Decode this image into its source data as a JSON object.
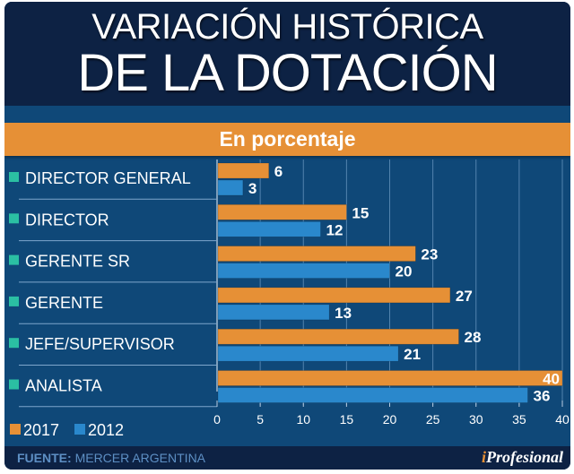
{
  "title_line1": "VARIACIÓN HISTÓRICA",
  "title_line2": "DE LA DOTACIÓN",
  "subtitle": "En porcentaje",
  "footer": {
    "source_label": "FUENTE:",
    "source_value": "MERCER ARGENTINA",
    "brand_prefix": "i",
    "brand_rest": "Profesional"
  },
  "colors": {
    "series_2017": "#e69036",
    "series_2012": "#2a88cc",
    "category_marker": "#2bbfa3"
  },
  "chart_data": {
    "type": "bar",
    "orientation": "horizontal",
    "title": "VARIACIÓN HISTÓRICA DE LA DOTACIÓN",
    "subtitle": "En porcentaje",
    "xlabel": "",
    "ylabel": "",
    "categories": [
      "DIRECTOR GENERAL",
      "DIRECTOR",
      "GERENTE SR",
      "GERENTE",
      "JEFE/SUPERVISOR",
      "ANALISTA"
    ],
    "series": [
      {
        "name": "2017",
        "values": [
          6,
          15,
          23,
          27,
          28,
          40
        ]
      },
      {
        "name": "2012",
        "values": [
          3,
          12,
          20,
          13,
          21,
          36
        ]
      }
    ],
    "xlim": [
      0,
      40
    ],
    "xticks": [
      0,
      5,
      10,
      15,
      20,
      25,
      30,
      35,
      40
    ],
    "xtick_labels": [
      "0",
      "5",
      "10",
      "15",
      "20",
      "25",
      "30",
      "35",
      "40"
    ],
    "grid": true,
    "legend": {
      "position": "bottom-left",
      "entries": [
        "2017",
        "2012"
      ]
    }
  }
}
